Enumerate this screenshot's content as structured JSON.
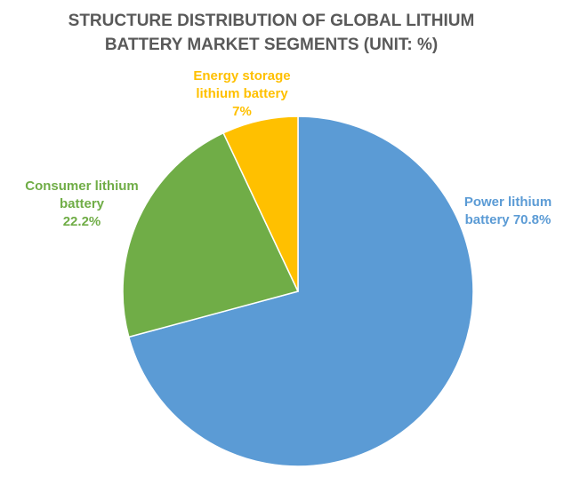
{
  "chart_data": {
    "type": "pie",
    "title": "STRUCTURE DISTRIBUTION OF GLOBAL LITHIUM BATTERY MARKET SEGMENTS (UNIT: %)",
    "categories": [
      "Power lithium battery",
      "Consumer lithium battery",
      "Energy storage lithium battery"
    ],
    "values": [
      70.8,
      22.2,
      7
    ],
    "value_labels": [
      "70.8%",
      "22.2%",
      "7%"
    ],
    "colors": [
      "#5b9bd5",
      "#70ad47",
      "#ffc000"
    ]
  }
}
